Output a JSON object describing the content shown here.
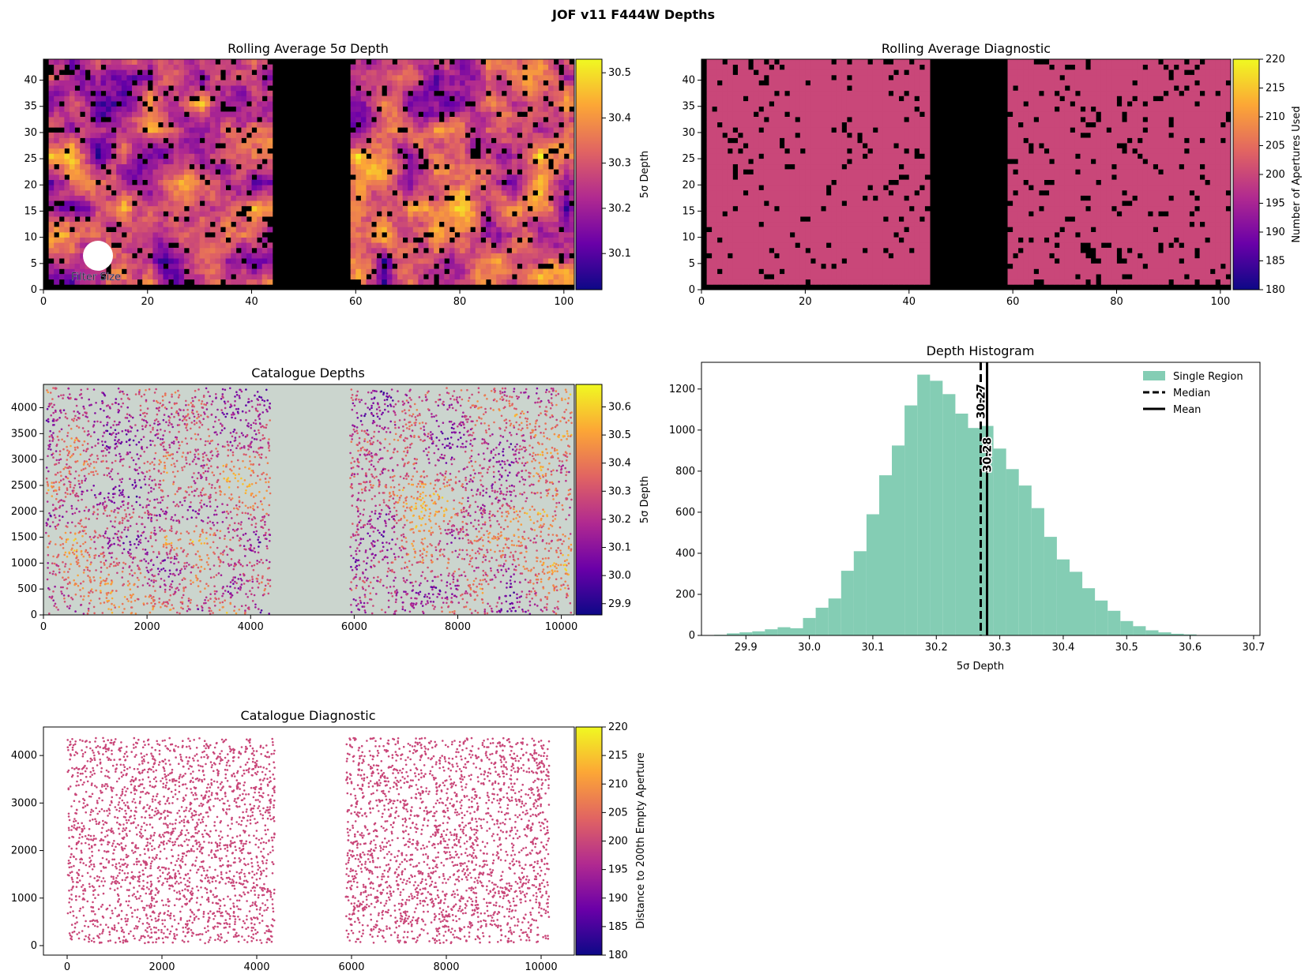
{
  "figure": {
    "suptitle": "JOF v11 F444W Depths",
    "colormap": [
      "#0d0887",
      "#6a00a8",
      "#b12a90",
      "#e16462",
      "#fca636",
      "#f0f921"
    ]
  },
  "chart_data": [
    {
      "id": "rolling_depth",
      "type": "heatmap",
      "title": "Rolling Average 5σ Depth",
      "xlim": [
        0,
        102
      ],
      "ylim": [
        0,
        44
      ],
      "xticks": [
        "0",
        "20",
        "40",
        "60",
        "80",
        "100"
      ],
      "yticks": [
        "0",
        "5",
        "10",
        "15",
        "20",
        "25",
        "30",
        "35",
        "40"
      ],
      "annotation": "Filter Size",
      "empty_band_x": [
        44,
        59
      ],
      "colorbar": {
        "label": "5σ Depth",
        "range": [
          30.02,
          30.53
        ],
        "ticks": [
          "30.1",
          "30.2",
          "30.3",
          "30.4",
          "30.5"
        ]
      }
    },
    {
      "id": "rolling_diag",
      "type": "heatmap",
      "title": "Rolling Average Diagnostic",
      "xlim": [
        0,
        102
      ],
      "ylim": [
        0,
        44
      ],
      "xticks": [
        "0",
        "20",
        "40",
        "60",
        "80",
        "100"
      ],
      "yticks": [
        "0",
        "5",
        "10",
        "15",
        "20",
        "25",
        "30",
        "35",
        "40"
      ],
      "value": 200,
      "empty_band_x": [
        44,
        59
      ],
      "colorbar": {
        "label": "Number of Apertures Used",
        "range": [
          180,
          220
        ],
        "ticks": [
          "180",
          "185",
          "190",
          "195",
          "200",
          "205",
          "210",
          "215",
          "220"
        ]
      }
    },
    {
      "id": "catalogue_depths",
      "type": "scatter",
      "title": "Catalogue Depths",
      "xlim": [
        0,
        10250
      ],
      "ylim": [
        0,
        4450
      ],
      "xticks": [
        "0",
        "2000",
        "4000",
        "6000",
        "8000",
        "10000"
      ],
      "yticks": [
        "0",
        "500",
        "1000",
        "1500",
        "2000",
        "2500",
        "3000",
        "3500",
        "4000"
      ],
      "background": "#cbd5ce",
      "regions_x": [
        [
          50,
          4380
        ],
        [
          5920,
          10200
        ]
      ],
      "colorbar": {
        "label": "5σ Depth",
        "range": [
          29.86,
          30.68
        ],
        "ticks": [
          "29.9",
          "30.0",
          "30.1",
          "30.2",
          "30.3",
          "30.4",
          "30.5",
          "30.6"
        ]
      }
    },
    {
      "id": "depth_histogram",
      "type": "bar",
      "title": "Depth Histogram",
      "xlabel": "5σ Depth",
      "xlim": [
        29.83,
        30.71
      ],
      "ylim": [
        0,
        1330
      ],
      "xticks": [
        "29.9",
        "30.0",
        "30.1",
        "30.2",
        "30.3",
        "30.4",
        "30.5",
        "30.6",
        "30.7"
      ],
      "yticks": [
        "0",
        "200",
        "400",
        "600",
        "800",
        "1000",
        "1200"
      ],
      "bin_start": 29.85,
      "bin_width": 0.02,
      "series": [
        {
          "name": "Single Region",
          "color": "#84cdb4",
          "values": [
            3,
            10,
            15,
            20,
            30,
            40,
            35,
            85,
            135,
            180,
            315,
            410,
            590,
            780,
            925,
            1120,
            1270,
            1240,
            1175,
            1080,
            1010,
            1020,
            910,
            810,
            730,
            620,
            480,
            370,
            310,
            230,
            170,
            120,
            70,
            45,
            25,
            15,
            8,
            5,
            2,
            1
          ]
        }
      ],
      "median": 30.27,
      "median_label": "30.27",
      "mean": 30.28,
      "mean_label": "30.28",
      "legend": {
        "position": "upper right",
        "items": [
          "Single Region",
          "Median",
          "Mean"
        ]
      }
    },
    {
      "id": "catalogue_diag",
      "type": "scatter",
      "title": "Catalogue Diagnostic",
      "xlim": [
        -500,
        10700
      ],
      "ylim": [
        -200,
        4600
      ],
      "xticks": [
        "0",
        "2000",
        "4000",
        "6000",
        "8000",
        "10000"
      ],
      "yticks": [
        "0",
        "1000",
        "2000",
        "3000",
        "4000"
      ],
      "value": 200,
      "regions_x": [
        [
          0,
          4380
        ],
        [
          5880,
          10170
        ]
      ],
      "region_y": [
        50,
        4370
      ],
      "colorbar": {
        "label": "Distance to 200th Empty Aperture",
        "range": [
          180,
          220
        ],
        "ticks": [
          "180",
          "185",
          "190",
          "195",
          "200",
          "205",
          "210",
          "215",
          "220"
        ]
      }
    }
  ]
}
